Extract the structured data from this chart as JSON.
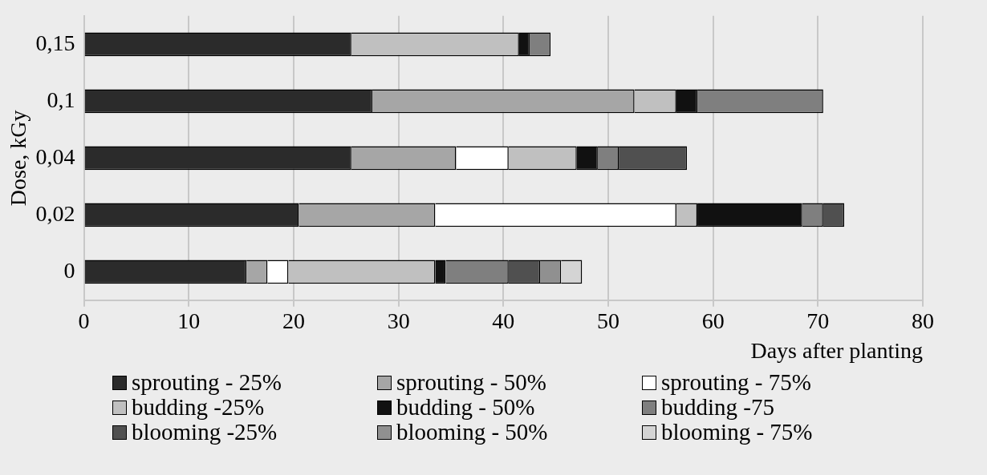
{
  "chart_data": {
    "type": "bar",
    "orientation": "horizontal",
    "stacked": true,
    "categories": [
      "0,15",
      "0,1",
      "0,04",
      "0,02",
      "0"
    ],
    "xlabel": "Days after planting",
    "ylabel": "Dose, kGy",
    "xlim": [
      0,
      80
    ],
    "xticks": [
      0,
      10,
      20,
      30,
      40,
      50,
      60,
      70,
      80
    ],
    "grid": "x",
    "legend": "bottom",
    "series": [
      {
        "name": "sprouting - 25%",
        "color": "#2b2b2b",
        "values": [
          25.5,
          27.5,
          25.5,
          20.5,
          15.5
        ]
      },
      {
        "name": "sprouting - 50%",
        "color": "#a6a6a6",
        "values": [
          0,
          25,
          10,
          13,
          2
        ]
      },
      {
        "name": "sprouting - 75%",
        "color": "#ffffff",
        "values": [
          0,
          0,
          5,
          23,
          2
        ]
      },
      {
        "name": "budding -25%",
        "color": "#c0c0c0",
        "values": [
          16,
          4,
          6.5,
          2,
          14
        ]
      },
      {
        "name": "budding - 50%",
        "color": "#111111",
        "values": [
          1,
          2,
          2,
          10,
          1
        ]
      },
      {
        "name": "budding -75",
        "color": "#7f7f7f",
        "values": [
          2,
          12,
          2,
          2,
          6
        ]
      },
      {
        "name": "blooming -25%",
        "color": "#505050",
        "values": [
          0,
          0,
          6.5,
          2,
          3
        ]
      },
      {
        "name": "blooming - 50%",
        "color": "#909090",
        "values": [
          0,
          0,
          0,
          0,
          2
        ]
      },
      {
        "name": "blooming - 75%",
        "color": "#d4d4d4",
        "values": [
          0,
          0,
          0,
          0,
          2
        ]
      }
    ]
  }
}
